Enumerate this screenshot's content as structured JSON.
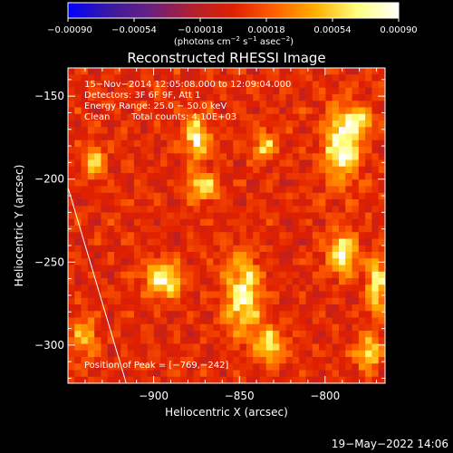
{
  "chart_data": {
    "type": "heatmap",
    "title": "Reconstructed RHESSI Image",
    "xlabel": "Heliocentric X (arcsec)",
    "ylabel": "Heliocentric Y (arcsec)",
    "xlim": [
      -950,
      -765
    ],
    "ylim": [
      -323,
      -133
    ],
    "x_ticks": [
      -900,
      -850,
      -800
    ],
    "x_tick_labels": [
      "−900",
      "−850",
      "−800"
    ],
    "y_ticks": [
      -150,
      -200,
      -250,
      -300
    ],
    "y_tick_labels": [
      "−150",
      "−200",
      "−250",
      "−300"
    ],
    "colorbar": {
      "min": -0.0009,
      "max": 0.0009,
      "ticks": [
        -0.0009,
        -0.00054,
        -0.00018,
        0.00018,
        0.00054,
        0.0009
      ],
      "tick_labels": [
        "−0.00090",
        "−0.00054",
        "−0.00018",
        "0.00018",
        "0.00054",
        "0.00090"
      ],
      "unit_parts": {
        "a": "(photons cm",
        "b": "−2",
        "c": " s",
        "d": "−1",
        "e": " asec",
        "f": "−2",
        "g": ")"
      },
      "stops": [
        "#0000ff",
        "#3a1aa0",
        "#6a2080",
        "#b02030",
        "#e02000",
        "#ff6000",
        "#ffb000",
        "#ffff80",
        "#ffffff"
      ]
    },
    "annotations": {
      "time": "15−Nov−2014 12:05:08.000 to 12:09:04.000",
      "detectors": "Detectors: 3F 6F 9F, Att 1",
      "energy": "Energy Range: 25.0 − 50.0 keV",
      "clean": "Clean",
      "counts": "Total counts: 4.10E+03",
      "peak": "Position of Peak = [−769,−242]"
    },
    "limb_line": {
      "x": [
        -950,
        -916
      ],
      "y": [
        -205,
        -323
      ]
    },
    "sources": [
      {
        "x": -875,
        "y": -175,
        "sx": 5,
        "sy": 9,
        "amp": 0.00075
      },
      {
        "x": -872,
        "y": -205,
        "sx": 6,
        "sy": 6,
        "amp": 0.00065
      },
      {
        "x": -835,
        "y": -180,
        "sx": 5,
        "sy": 6,
        "amp": 0.00055
      },
      {
        "x": -790,
        "y": -180,
        "sx": 7,
        "sy": 14,
        "amp": 0.00085
      },
      {
        "x": -780,
        "y": -165,
        "sx": 5,
        "sy": 5,
        "amp": 0.0006
      },
      {
        "x": -895,
        "y": -260,
        "sx": 7,
        "sy": 7,
        "amp": 0.00085
      },
      {
        "x": -935,
        "y": -190,
        "sx": 4,
        "sy": 7,
        "amp": 0.00055
      },
      {
        "x": -848,
        "y": -270,
        "sx": 7,
        "sy": 16,
        "amp": 0.00075
      },
      {
        "x": -832,
        "y": -300,
        "sx": 6,
        "sy": 8,
        "amp": 0.0006
      },
      {
        "x": -790,
        "y": -245,
        "sx": 6,
        "sy": 9,
        "amp": 0.0007
      },
      {
        "x": -770,
        "y": -265,
        "sx": 4,
        "sy": 12,
        "amp": 0.0007
      },
      {
        "x": -775,
        "y": -305,
        "sx": 5,
        "sy": 7,
        "amp": 0.0006
      },
      {
        "x": -940,
        "y": -295,
        "sx": 5,
        "sy": 8,
        "amp": 0.00045
      }
    ]
  },
  "footer": {
    "date": "19−May−2022 14:06"
  }
}
